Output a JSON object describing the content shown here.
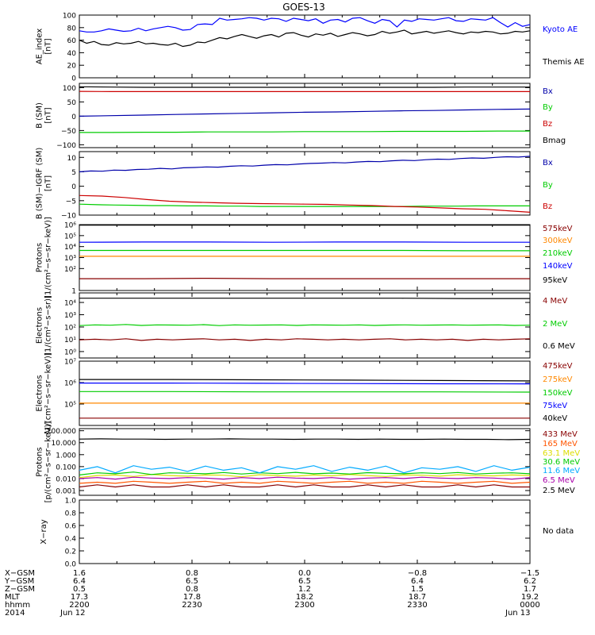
{
  "title": "GOES-13",
  "chart_data": [
    {
      "type": "line",
      "ylabel": "AE_index\n[nT]",
      "yscale": "linear",
      "ylim": [
        0,
        100
      ],
      "yticks": [
        0,
        20,
        40,
        60,
        80,
        100
      ],
      "tick_labels": [
        "0",
        "20",
        "40",
        "60",
        "80",
        "100"
      ],
      "series": [
        {
          "name": "Kyoto AE",
          "color": "#0000ff",
          "values": [
            75,
            73,
            73,
            75,
            78,
            76,
            74,
            75,
            79,
            75,
            78,
            80,
            82,
            80,
            76,
            77,
            85,
            86,
            85,
            95,
            92,
            93,
            94,
            96,
            95,
            92,
            95,
            94,
            90,
            95,
            93,
            91,
            94,
            87,
            92,
            93,
            89,
            95,
            96,
            91,
            87,
            93,
            91,
            81,
            92,
            90,
            94,
            93,
            92,
            94,
            96,
            91,
            90,
            94,
            93,
            92,
            96,
            88,
            81,
            88,
            82,
            85
          ]
        },
        {
          "name": "Themis AE",
          "color": "#000000",
          "values": [
            60,
            55,
            58,
            53,
            52,
            56,
            54,
            55,
            58,
            54,
            55,
            53,
            52,
            55,
            50,
            52,
            57,
            56,
            60,
            64,
            62,
            66,
            69,
            66,
            63,
            67,
            69,
            65,
            71,
            72,
            68,
            65,
            70,
            68,
            71,
            66,
            69,
            72,
            70,
            67,
            69,
            74,
            71,
            73,
            76,
            70,
            72,
            74,
            71,
            73,
            75,
            72,
            70,
            73,
            72,
            74,
            73,
            70,
            71,
            74,
            73,
            75
          ]
        }
      ]
    },
    {
      "type": "line",
      "ylabel": "B (SM)\n[nT]",
      "yscale": "linear",
      "ylim": [
        -110,
        115
      ],
      "yticks": [
        -100,
        -50,
        0,
        50,
        100
      ],
      "tick_labels": [
        "−100",
        "−50",
        "0",
        "50",
        "100"
      ],
      "series": [
        {
          "name": "Bx",
          "color": "#0000aa",
          "values": [
            0,
            2,
            4,
            6,
            8,
            10,
            12,
            14,
            15,
            17,
            19,
            20,
            22,
            24,
            25
          ]
        },
        {
          "name": "By",
          "color": "#00cc00",
          "values": [
            -57,
            -57,
            -56,
            -56,
            -55,
            -55,
            -55,
            -54,
            -54,
            -54,
            -53,
            -53,
            -53,
            -52,
            -52
          ]
        },
        {
          "name": "Bz",
          "color": "#cc0000",
          "values": [
            87,
            86,
            86,
            86,
            86,
            86,
            86,
            86,
            86,
            86,
            86,
            86,
            86,
            86,
            86
          ]
        },
        {
          "name": "Bmag",
          "color": "#000000",
          "values": [
            103,
            102,
            101,
            101,
            101,
            101,
            101,
            101,
            101,
            101,
            101,
            101,
            102,
            102,
            102
          ]
        }
      ]
    },
    {
      "type": "line",
      "ylabel": "B (SM)−IGRF (SM)\n[nT]",
      "yscale": "linear",
      "ylim": [
        -10,
        12
      ],
      "yticks": [
        -10,
        -5,
        0,
        5,
        10
      ],
      "tick_labels": [
        "−10",
        "−5",
        "0",
        "5",
        "10"
      ],
      "series": [
        {
          "name": "Bx",
          "color": "#0000aa",
          "values": [
            5.0,
            5.3,
            5.2,
            5.6,
            5.5,
            5.8,
            5.9,
            6.2,
            6.0,
            6.4,
            6.5,
            6.7,
            6.6,
            6.9,
            7.1,
            7.0,
            7.3,
            7.5,
            7.4,
            7.7,
            7.9,
            8.0,
            8.2,
            8.1,
            8.4,
            8.6,
            8.5,
            8.8,
            9.0,
            8.9,
            9.2,
            9.4,
            9.3,
            9.6,
            9.8,
            9.7,
            10.0,
            10.2,
            10.1,
            10.4
          ]
        },
        {
          "name": "By",
          "color": "#00cc00",
          "values": [
            -6.2,
            -6.4,
            -6.5,
            -6.6,
            -6.7,
            -6.7,
            -6.8,
            -6.8,
            -6.9,
            -6.9,
            -7.0,
            -7.0,
            -7.0,
            -7.0,
            -7.0,
            -7.0,
            -7.0,
            -7.0,
            -7.0,
            -6.9,
            -6.9,
            -6.9,
            -6.8,
            -6.8,
            -6.8,
            -6.8
          ]
        },
        {
          "name": "Bz",
          "color": "#cc0000",
          "values": [
            -3.2,
            -3.4,
            -3.9,
            -4.6,
            -5.2,
            -5.5,
            -5.7,
            -5.9,
            -6.0,
            -6.1,
            -6.2,
            -6.3,
            -6.5,
            -6.7,
            -7.0,
            -7.2,
            -7.5,
            -7.8,
            -8.0,
            -8.5,
            -9.0
          ]
        }
      ]
    },
    {
      "type": "line",
      "ylabel": "Protons\n[1/(cm²−s−sr−keV)]",
      "yscale": "log",
      "ylim": [
        1,
        1000000
      ],
      "yticks": [
        1,
        100,
        1000,
        10000,
        100000,
        1000000
      ],
      "tick_labels": [
        "1",
        "10²",
        "10³",
        "10⁴",
        "10⁵",
        "10⁶"
      ],
      "series": [
        {
          "name": "575keV",
          "color": "#880000",
          "values": [
            12,
            12,
            13,
            12,
            12,
            12,
            12,
            12
          ]
        },
        {
          "name": "300keV",
          "color": "#ff8800",
          "values": [
            1300,
            1300,
            1300,
            1300,
            1300,
            1300,
            1300,
            1300
          ]
        },
        {
          "name": "210keV",
          "color": "#00cc00",
          "values": [
            4500,
            4500,
            4500,
            4500,
            4500,
            4500,
            4200,
            4200
          ]
        },
        {
          "name": "140keV",
          "color": "#0000ff",
          "values": [
            25000,
            26000,
            26000,
            25000,
            26000,
            26000,
            25000,
            25000
          ]
        },
        {
          "name": "95keV",
          "color": "#000000",
          "values": [
            900000,
            900000,
            900000,
            900000,
            900000,
            900000,
            900000,
            900000
          ]
        }
      ]
    },
    {
      "type": "line",
      "ylabel": "Electrons\n[1/(cm²−s−sr)]",
      "yscale": "log",
      "ylim": [
        0.3,
        60000
      ],
      "yticks": [
        1,
        10,
        100,
        1000,
        10000
      ],
      "tick_labels": [
        "10⁰",
        "10¹",
        "10²",
        "10³",
        "10⁴"
      ],
      "series": [
        {
          "name": "4 MeV",
          "color": "#880000",
          "values": [
            9,
            10,
            9,
            11,
            8,
            10,
            9,
            10,
            11,
            9,
            10,
            8,
            10,
            9,
            11,
            10,
            9,
            10,
            9,
            10,
            11,
            9,
            10,
            9,
            10,
            8,
            10,
            9,
            10,
            11
          ]
        },
        {
          "name": "2 MeV",
          "color": "#00cc00",
          "values": [
            130,
            150,
            140,
            160,
            135,
            150,
            145,
            140,
            155,
            130,
            150,
            140,
            145,
            150,
            135,
            150,
            145,
            140,
            150,
            135,
            145,
            150,
            140,
            145,
            150,
            140,
            145,
            150,
            135,
            140
          ]
        },
        {
          "name": "0.6 MeV",
          "color": "#000000",
          "values": [
            22000,
            22000,
            22000,
            22000,
            22000,
            22000,
            21000,
            21000
          ]
        }
      ]
    },
    {
      "type": "line",
      "ylabel": "Electrons\n[1/(cm²−s−sr−keV)]",
      "yscale": "log",
      "ylim": [
        10000,
        10000000
      ],
      "yticks": [
        100000,
        1000000,
        10000000
      ],
      "tick_labels": [
        "10⁵",
        "10⁶",
        "10⁷"
      ],
      "series": [
        {
          "name": "475keV",
          "color": "#880000",
          "values": [
            22000,
            22000,
            22000,
            22000,
            22000,
            22000
          ]
        },
        {
          "name": "275keV",
          "color": "#ff8800",
          "values": [
            110000,
            110000,
            110000,
            110000,
            110000,
            110000
          ]
        },
        {
          "name": "150keV",
          "color": "#00cc00",
          "values": [
            380000,
            380000,
            370000,
            370000,
            370000,
            360000
          ]
        },
        {
          "name": "75keV",
          "color": "#0000ff",
          "values": [
            950000,
            950000,
            930000,
            900000,
            880000,
            870000
          ]
        },
        {
          "name": "40keV",
          "color": "#000000",
          "values": [
            1400000,
            1400000,
            1350000,
            1300000,
            1250000,
            1200000
          ]
        }
      ]
    },
    {
      "type": "line",
      "ylabel": "Protons\n[p/(cm²−s−sr−keV)]",
      "yscale": "log",
      "ylim": [
        0.0004,
        150
      ],
      "yticks": [
        0.001,
        0.01,
        0.1,
        1,
        10,
        100
      ],
      "tick_labels": [
        "0.001",
        "0.010",
        "0.100",
        "1.000",
        "10.000",
        "100.000"
      ],
      "series": [
        {
          "name": "433 MeV",
          "color": "#880000",
          "values": [
            0.002,
            0.003,
            0.002,
            0.003,
            0.002,
            0.002,
            0.003,
            0.002,
            0.003,
            0.002,
            0.002,
            0.003,
            0.002,
            0.003,
            0.002,
            0.002,
            0.003,
            0.002,
            0.003,
            0.002,
            0.002,
            0.003,
            0.002,
            0.003,
            0.002,
            0.002
          ]
        },
        {
          "name": "165 MeV",
          "color": "#ff5500",
          "values": [
            0.004,
            0.005,
            0.004,
            0.006,
            0.005,
            0.004,
            0.005,
            0.006,
            0.004,
            0.005,
            0.004,
            0.006,
            0.005,
            0.004,
            0.005,
            0.006,
            0.004,
            0.005,
            0.004,
            0.006,
            0.005,
            0.004,
            0.005,
            0.006,
            0.004,
            0.005
          ]
        },
        {
          "name": "63.1 MeV",
          "color": "#dddd00",
          "values": [
            0.012,
            0.018,
            0.02,
            0.015,
            0.022,
            0.018,
            0.016,
            0.02,
            0.019,
            0.014,
            0.021,
            0.018,
            0.016,
            0.02,
            0.017,
            0.022,
            0.018,
            0.015,
            0.02,
            0.019,
            0.016,
            0.021,
            0.018,
            0.017,
            0.02,
            0.018
          ]
        },
        {
          "name": "30.6 MeV",
          "color": "#00cc00",
          "values": [
            0.02,
            0.03,
            0.025,
            0.035,
            0.022,
            0.03,
            0.028,
            0.025,
            0.032,
            0.024,
            0.03,
            0.026,
            0.033,
            0.025,
            0.029,
            0.024,
            0.031,
            0.027,
            0.025,
            0.03,
            0.026,
            0.032,
            0.024,
            0.028,
            0.03,
            0.025
          ]
        },
        {
          "name": "11.6 MeV",
          "color": "#00aaff",
          "values": [
            0.05,
            0.1,
            0.03,
            0.12,
            0.06,
            0.09,
            0.04,
            0.11,
            0.05,
            0.08,
            0.03,
            0.1,
            0.06,
            0.12,
            0.04,
            0.09,
            0.05,
            0.11,
            0.03,
            0.08,
            0.06,
            0.1,
            0.04,
            0.12,
            0.05,
            0.09
          ]
        },
        {
          "name": "6.5 MeV",
          "color": "#aa00aa",
          "values": [
            0.01,
            0.012,
            0.009,
            0.013,
            0.011,
            0.01,
            0.012,
            0.011,
            0.009,
            0.012,
            0.01,
            0.013,
            0.011,
            0.01,
            0.012,
            0.009,
            0.011,
            0.012,
            0.01,
            0.013,
            0.011,
            0.01,
            0.012,
            0.011,
            0.009,
            0.012
          ]
        },
        {
          "name": "2.5 MeV",
          "color": "#000000",
          "values": [
            20,
            21,
            20,
            20,
            19,
            20,
            20,
            21,
            20,
            20,
            19,
            20,
            20,
            19,
            20,
            19,
            19,
            20,
            19,
            19,
            18,
            19
          ]
        }
      ]
    },
    {
      "type": "line",
      "ylabel": "X−ray",
      "yscale": "linear",
      "ylim": [
        0,
        1
      ],
      "yticks": [
        0,
        0.2,
        0.4,
        0.6,
        0.8,
        1.0
      ],
      "tick_labels": [
        "0.0",
        "0.2",
        "0.4",
        "0.6",
        "0.8",
        "1.0"
      ],
      "series": [],
      "annotation": "No data"
    }
  ],
  "x_axis": {
    "rows": [
      {
        "label": "X−GSM",
        "values": [
          "1.6",
          "0.8",
          "0.0",
          "−0.8",
          "−1.5"
        ]
      },
      {
        "label": "Y−GSM",
        "values": [
          "6.4",
          "6.5",
          "6.5",
          "6.4",
          "6.2"
        ]
      },
      {
        "label": "Z−GSM",
        "values": [
          "0.5",
          "0.8",
          "1.2",
          "1.5",
          "1.7"
        ]
      },
      {
        "label": "MLT",
        "values": [
          "17.3",
          "17.8",
          "18.2",
          "18.7",
          "19.2"
        ]
      },
      {
        "label": "hhmm",
        "values": [
          "2200",
          "2230",
          "2300",
          "2330",
          "0000"
        ]
      },
      {
        "label": "2014",
        "values": [
          "Jun 12",
          "",
          "",
          "",
          "Jun 13"
        ]
      }
    ]
  }
}
